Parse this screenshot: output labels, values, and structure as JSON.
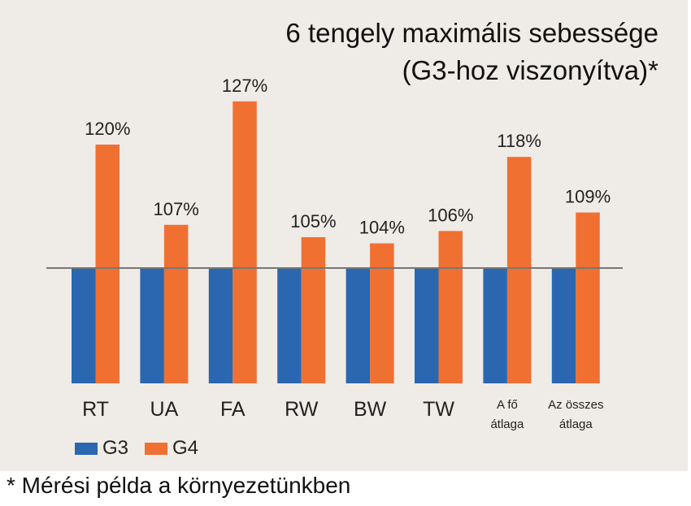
{
  "title_line1": "6 tengely maximális sebessége",
  "title_line2": "(G3-hoz viszonyítva)*",
  "footnote": "* Mérési példa a környezetünkben",
  "colors": {
    "G3": "#2a67b0",
    "G4": "#f07032",
    "baseline": "#777777"
  },
  "chart_data": {
    "type": "bar",
    "title": "6 tengely maximális sebessége (G3-hoz viszonyítva)*",
    "categories": [
      [
        "RT"
      ],
      [
        "UA"
      ],
      [
        "FA"
      ],
      [
        "RW"
      ],
      [
        "BW"
      ],
      [
        "TW"
      ],
      [
        "A fő",
        "átlaga"
      ],
      [
        "Az összes",
        "átlaga"
      ]
    ],
    "series": [
      {
        "name": "G3",
        "values": [
          100,
          100,
          100,
          100,
          100,
          100,
          100,
          100
        ]
      },
      {
        "name": "G4",
        "values": [
          120,
          107,
          127,
          105,
          104,
          106,
          118,
          109
        ]
      }
    ],
    "data_labels": [
      "120%",
      "107%",
      "127%",
      "105%",
      "104%",
      "106%",
      "118%",
      "109%"
    ],
    "baseline": 100,
    "legend": "bottom-left",
    "grid": false
  }
}
